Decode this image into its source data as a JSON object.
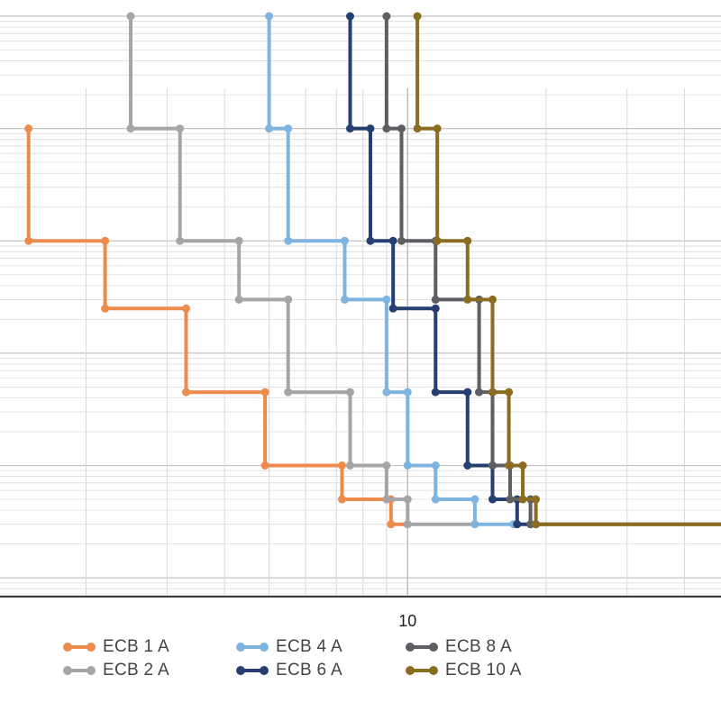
{
  "chart_data": {
    "type": "line",
    "x_scale": "log",
    "y_scale": "log",
    "xlim": [
      1.3,
      48
    ],
    "ylim": [
      0.0068,
      1000
    ],
    "x_tick_labels": [
      {
        "value": 10,
        "label": "10"
      }
    ],
    "grid": true,
    "legend_position": "bottom",
    "series": [
      {
        "name": "ECB 1 A",
        "color": "#ED8B4D",
        "points": [
          [
            1.5,
            100
          ],
          [
            1.5,
            10
          ],
          [
            2.2,
            10
          ],
          [
            2.2,
            2.5
          ],
          [
            3.3,
            2.5
          ],
          [
            3.3,
            0.45
          ],
          [
            4.9,
            0.45
          ],
          [
            4.9,
            0.1
          ],
          [
            7.2,
            0.1
          ],
          [
            7.2,
            0.05
          ],
          [
            9.2,
            0.05
          ],
          [
            9.2,
            0.03
          ],
          [
            10,
            0.03
          ]
        ]
      },
      {
        "name": "ECB 2 A",
        "color": "#A5A5A5",
        "points": [
          [
            2.5,
            1000
          ],
          [
            2.5,
            100
          ],
          [
            3.2,
            100
          ],
          [
            3.2,
            10
          ],
          [
            4.3,
            10
          ],
          [
            4.3,
            3
          ],
          [
            5.5,
            3
          ],
          [
            5.5,
            0.45
          ],
          [
            7.5,
            0.45
          ],
          [
            7.5,
            0.1
          ],
          [
            9.0,
            0.1
          ],
          [
            9.0,
            0.05
          ],
          [
            10,
            0.05
          ],
          [
            10,
            0.03
          ],
          [
            14,
            0.03
          ]
        ]
      },
      {
        "name": "ECB 4 A",
        "color": "#7FB3E0",
        "points": [
          [
            5.0,
            1000
          ],
          [
            5.0,
            100
          ],
          [
            5.5,
            100
          ],
          [
            5.5,
            10
          ],
          [
            7.3,
            10
          ],
          [
            7.3,
            3
          ],
          [
            9.0,
            3
          ],
          [
            9.0,
            0.45
          ],
          [
            10,
            0.45
          ],
          [
            10,
            0.1
          ],
          [
            11.5,
            0.1
          ],
          [
            11.5,
            0.05
          ],
          [
            14,
            0.05
          ],
          [
            14,
            0.03
          ],
          [
            17,
            0.03
          ]
        ]
      },
      {
        "name": "ECB 6 A",
        "color": "#263F73",
        "points": [
          [
            7.5,
            1000
          ],
          [
            7.5,
            100
          ],
          [
            8.3,
            100
          ],
          [
            8.3,
            10
          ],
          [
            9.3,
            10
          ],
          [
            9.3,
            2.5
          ],
          [
            11.5,
            2.5
          ],
          [
            11.5,
            0.45
          ],
          [
            13.5,
            0.45
          ],
          [
            13.5,
            0.1
          ],
          [
            15.3,
            0.1
          ],
          [
            15.3,
            0.05
          ],
          [
            17.3,
            0.05
          ],
          [
            17.3,
            0.03
          ],
          [
            19,
            0.03
          ]
        ]
      },
      {
        "name": "ECB 8 A",
        "color": "#5E5E63",
        "points": [
          [
            9.0,
            1000
          ],
          [
            9.0,
            100
          ],
          [
            9.7,
            100
          ],
          [
            9.7,
            10
          ],
          [
            11.5,
            10
          ],
          [
            11.5,
            3
          ],
          [
            14.3,
            3
          ],
          [
            14.3,
            0.45
          ],
          [
            15.3,
            0.45
          ],
          [
            15.3,
            0.1
          ],
          [
            16.7,
            0.1
          ],
          [
            16.7,
            0.05
          ],
          [
            18.5,
            0.05
          ],
          [
            18.5,
            0.03
          ],
          [
            48,
            0.03
          ]
        ]
      },
      {
        "name": "ECB 10 A",
        "color": "#8B6D21",
        "points": [
          [
            10.5,
            1000
          ],
          [
            10.5,
            100
          ],
          [
            11.6,
            100
          ],
          [
            11.6,
            10
          ],
          [
            13.5,
            10
          ],
          [
            13.5,
            3
          ],
          [
            15.3,
            3
          ],
          [
            15.3,
            0.45
          ],
          [
            16.6,
            0.45
          ],
          [
            16.6,
            0.1
          ],
          [
            17.8,
            0.1
          ],
          [
            17.8,
            0.05
          ],
          [
            19.0,
            0.05
          ],
          [
            19.0,
            0.03
          ],
          [
            48,
            0.03
          ]
        ]
      }
    ]
  }
}
